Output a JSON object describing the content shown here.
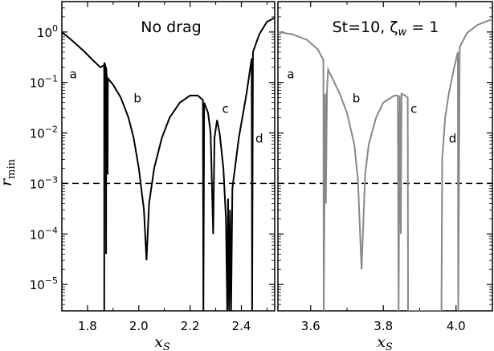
{
  "chart_data": {
    "type": "line",
    "ylabel": "r",
    "ylabel_sub": "min",
    "y_scale": "log",
    "ylim": [
      3e-06,
      4
    ],
    "y_ticks": [
      {
        "value": 1,
        "label": "10",
        "exp": "0"
      },
      {
        "value": 0.1,
        "label": "10",
        "exp": "−1"
      },
      {
        "value": 0.01,
        "label": "10",
        "exp": "−2"
      },
      {
        "value": 0.001,
        "label": "10",
        "exp": "−3"
      },
      {
        "value": 0.0001,
        "label": "10",
        "exp": "−4"
      },
      {
        "value": 1e-05,
        "label": "10",
        "exp": "−5"
      }
    ],
    "reference_line": {
      "y": 0.001,
      "style": "dashed"
    },
    "panels": [
      {
        "id": "left",
        "title": "No drag",
        "xlabel": "x",
        "xlabel_sub": "S",
        "xlim": [
          1.7,
          2.53
        ],
        "x_ticks": [
          {
            "value": 1.8,
            "label": "1.8"
          },
          {
            "value": 2.0,
            "label": "2.0"
          },
          {
            "value": 2.2,
            "label": "2.2"
          },
          {
            "value": 2.4,
            "label": "2.4"
          }
        ],
        "color": "#000000",
        "annotations": [
          {
            "text": "a",
            "x": 1.73,
            "y": 0.12
          },
          {
            "text": "b",
            "x": 1.98,
            "y": 0.04
          },
          {
            "text": "c",
            "x": 2.325,
            "y": 0.025
          },
          {
            "text": "d",
            "x": 2.455,
            "y": 0.0065
          }
        ],
        "series": [
          {
            "points": [
              [
                1.7,
                1.0
              ],
              [
                1.73,
                0.75
              ],
              [
                1.76,
                0.55
              ],
              [
                1.79,
                0.4
              ],
              [
                1.82,
                0.28
              ],
              [
                1.85,
                0.2
              ],
              [
                1.865,
                0.22
              ],
              [
                1.8655,
                3e-06
              ],
              [
                1.866,
                0.25
              ],
              [
                1.872,
                0.19
              ],
              [
                1.8725,
                4e-05
              ],
              [
                1.873,
                0.2
              ],
              [
                1.878,
                0.07
              ],
              [
                1.8785,
                0.0015
              ],
              [
                1.879,
                0.07
              ],
              [
                1.88,
                0.12
              ],
              [
                1.9,
                0.09
              ],
              [
                1.93,
                0.05
              ],
              [
                1.96,
                0.02
              ],
              [
                1.98,
                0.008
              ],
              [
                2.0,
                0.002
              ],
              [
                2.02,
                0.0003
              ],
              [
                2.03,
                3e-05
              ],
              [
                2.04,
                0.0004
              ],
              [
                2.06,
                0.002
              ],
              [
                2.09,
                0.008
              ],
              [
                2.12,
                0.02
              ],
              [
                2.16,
                0.04
              ],
              [
                2.2,
                0.055
              ],
              [
                2.23,
                0.055
              ],
              [
                2.25,
                0.045
              ],
              [
                2.252,
                3e-06
              ],
              [
                2.255,
                0.04
              ],
              [
                2.27,
                0.025
              ],
              [
                2.28,
                0.01
              ],
              [
                2.29,
                0.0001
              ],
              [
                2.295,
                0.008
              ],
              [
                2.305,
                0.018
              ],
              [
                2.315,
                0.01
              ],
              [
                2.33,
                0.002
              ],
              [
                2.34,
                0.0002
              ],
              [
                2.345,
                3e-06
              ],
              [
                2.348,
                0.0005
              ],
              [
                2.352,
                3e-06
              ],
              [
                2.356,
                0.0003
              ],
              [
                2.36,
                3e-06
              ],
              [
                2.365,
                0.0008
              ],
              [
                2.39,
                0.008
              ],
              [
                2.42,
                0.06
              ],
              [
                2.44,
                0.3
              ],
              [
                2.442,
                3e-06
              ],
              [
                2.445,
                0.4
              ],
              [
                2.47,
                0.9
              ],
              [
                2.5,
                1.6
              ],
              [
                2.53,
                1.9
              ]
            ]
          }
        ]
      },
      {
        "id": "right",
        "title": "St=10, ζ",
        "title_sub": "w",
        "title_suffix": " = 1",
        "xlabel": "x",
        "xlabel_sub": "S",
        "xlim": [
          3.51,
          4.1
        ],
        "x_ticks": [
          {
            "value": 3.6,
            "label": "3.6"
          },
          {
            "value": 3.8,
            "label": "3.8"
          },
          {
            "value": 4.0,
            "label": "4.0"
          }
        ],
        "color": "#888888",
        "annotations": [
          {
            "text": "a",
            "x": 3.535,
            "y": 0.12
          },
          {
            "text": "b",
            "x": 3.715,
            "y": 0.04
          },
          {
            "text": "c",
            "x": 3.875,
            "y": 0.025
          },
          {
            "text": "d",
            "x": 3.98,
            "y": 0.0065
          }
        ],
        "series": [
          {
            "points": [
              [
                3.51,
                1.0
              ],
              [
                3.55,
                0.9
              ],
              [
                3.59,
                0.7
              ],
              [
                3.62,
                0.45
              ],
              [
                3.635,
                0.28
              ],
              [
                3.636,
                3e-06
              ],
              [
                3.64,
                0.06
              ],
              [
                3.642,
                0.0004
              ],
              [
                3.645,
                0.07
              ],
              [
                3.648,
                0.18
              ],
              [
                3.66,
                0.12
              ],
              [
                3.68,
                0.06
              ],
              [
                3.7,
                0.025
              ],
              [
                3.72,
                0.006
              ],
              [
                3.73,
                0.0012
              ],
              [
                3.74,
                2e-05
              ],
              [
                3.75,
                0.0015
              ],
              [
                3.76,
                0.006
              ],
              [
                3.78,
                0.02
              ],
              [
                3.8,
                0.04
              ],
              [
                3.83,
                0.055
              ],
              [
                3.84,
                0.055
              ],
              [
                3.842,
                3e-06
              ],
              [
                3.845,
                0.055
              ],
              [
                3.848,
                0.0001
              ],
              [
                3.85,
                0.06
              ],
              [
                3.86,
                0.055
              ],
              [
                3.867,
                0.05
              ],
              [
                3.868,
                3e-06
              ],
              [
                3.87,
                3e-06
              ],
              [
                3.96,
                3e-06
              ],
              [
                3.962,
                0.003
              ],
              [
                3.97,
                0.02
              ],
              [
                3.98,
                0.06
              ],
              [
                3.995,
                0.2
              ],
              [
                4.005,
                0.4
              ],
              [
                4.006,
                3e-06
              ],
              [
                4.01,
                0.5
              ],
              [
                4.03,
                0.95
              ],
              [
                4.06,
                1.4
              ],
              [
                4.1,
                1.8
              ]
            ]
          }
        ]
      }
    ]
  }
}
